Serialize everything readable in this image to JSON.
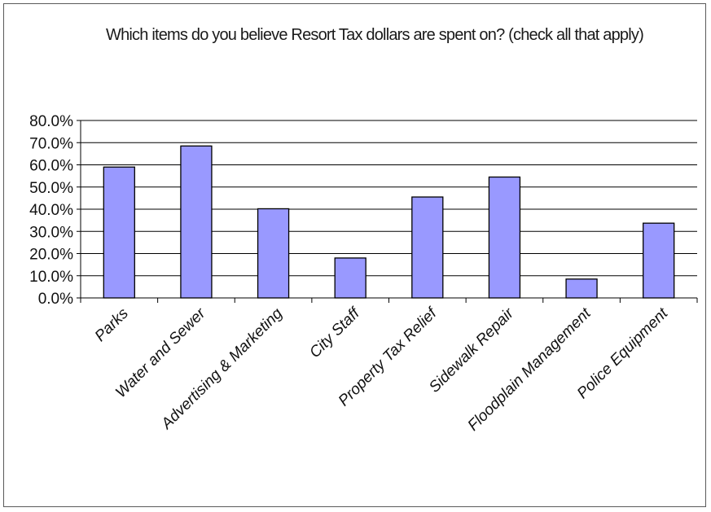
{
  "chart_data": {
    "type": "bar",
    "title": "Which items do you believe Resort Tax dollars are spent on? (check all that apply)",
    "xlabel": "",
    "ylabel": "",
    "ylim": [
      0,
      80
    ],
    "y_ticks": [
      "0.0%",
      "10.0%",
      "20.0%",
      "30.0%",
      "40.0%",
      "50.0%",
      "60.0%",
      "70.0%",
      "80.0%"
    ],
    "grid": true,
    "legend": "none",
    "bar_color": "#9999ff",
    "categories": [
      "Parks",
      "Water and Sewer",
      "Advertising & Marketing",
      "City Staff",
      "Property Tax Relief",
      "Sidewalk Repair",
      "Floodplain Management",
      "Police Equipment"
    ],
    "values": [
      59.0,
      68.5,
      40.2,
      18.0,
      45.5,
      54.5,
      8.5,
      33.7
    ]
  }
}
